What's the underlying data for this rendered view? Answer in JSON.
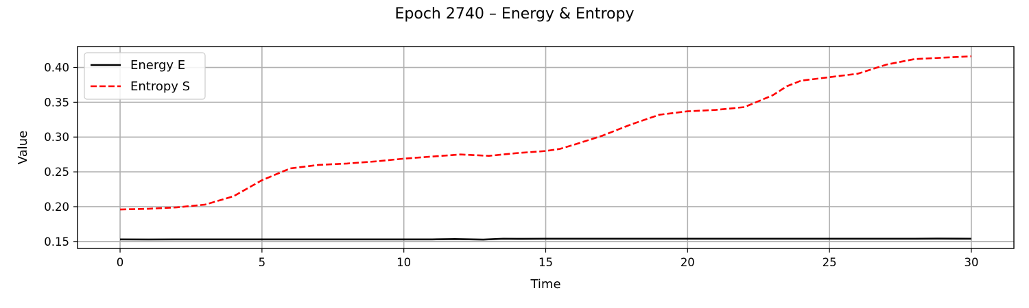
{
  "figure": {
    "title": "Epoch 2740 – Energy & Entropy"
  },
  "chart_data": {
    "type": "line",
    "title": "Epoch 2740 – Energy & Entropy",
    "xlabel": "Time",
    "ylabel": "Value",
    "xlim": [
      -1.5,
      31.5
    ],
    "ylim": [
      0.14,
      0.43
    ],
    "xticks": [
      0,
      5,
      10,
      15,
      20,
      25,
      30
    ],
    "yticks": [
      0.15,
      0.2,
      0.25,
      0.3,
      0.35,
      0.4
    ],
    "xtick_labels": [
      "0",
      "5",
      "10",
      "15",
      "20",
      "25",
      "30"
    ],
    "ytick_labels": [
      "0.15",
      "0.20",
      "0.25",
      "0.30",
      "0.35",
      "0.40"
    ],
    "grid": true,
    "legend_position": "top-left",
    "series": [
      {
        "name": "Energy E",
        "color": "#000000",
        "style": "solid",
        "x": [
          0,
          1,
          2,
          3,
          4,
          5,
          6,
          7,
          8,
          9,
          10,
          11,
          11.8,
          12.8,
          13.5,
          14,
          15,
          16,
          17,
          18,
          19,
          20,
          21,
          22,
          23,
          24,
          25,
          26,
          27,
          28,
          28.8,
          30
        ],
        "y": [
          0.153,
          0.1528,
          0.153,
          0.153,
          0.153,
          0.153,
          0.153,
          0.153,
          0.153,
          0.153,
          0.153,
          0.153,
          0.1535,
          0.1527,
          0.154,
          0.1538,
          0.154,
          0.154,
          0.154,
          0.154,
          0.154,
          0.154,
          0.154,
          0.154,
          0.154,
          0.154,
          0.154,
          0.154,
          0.154,
          0.154,
          0.1542,
          0.154
        ]
      },
      {
        "name": "Entropy S",
        "color": "#ff0000",
        "style": "dashed",
        "x": [
          0,
          1,
          2,
          3,
          4,
          5,
          6,
          7,
          8,
          9,
          10,
          11,
          12,
          13,
          14,
          15,
          15.5,
          16,
          17,
          18,
          19,
          20,
          21,
          22,
          23,
          23.5,
          24,
          25,
          26,
          27,
          28,
          29,
          30
        ],
        "y": [
          0.196,
          0.197,
          0.199,
          0.203,
          0.215,
          0.238,
          0.255,
          0.26,
          0.262,
          0.265,
          0.269,
          0.272,
          0.275,
          0.273,
          0.277,
          0.28,
          0.283,
          0.289,
          0.302,
          0.318,
          0.332,
          0.337,
          0.339,
          0.343,
          0.36,
          0.373,
          0.381,
          0.386,
          0.391,
          0.404,
          0.412,
          0.414,
          0.416
        ]
      }
    ]
  }
}
